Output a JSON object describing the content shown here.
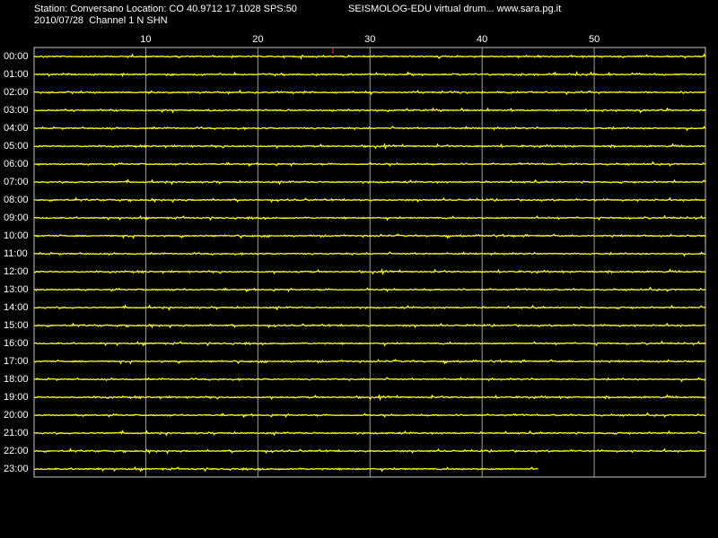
{
  "chart_data": {
    "type": "drum",
    "title": "Station: Conversano Location: CO 40.9712 17.1028 SPS:50",
    "subtitle": "SEISMOLOG-EDU virtual drum... www.sara.pg.it",
    "info": "2010/07/28  Channel 1 N SHN",
    "categories": [
      "00:00",
      "01:00",
      "02:00",
      "03:00",
      "04:00",
      "05:00",
      "06:00",
      "07:00",
      "08:00",
      "09:00",
      "10:00",
      "11:00",
      "12:00",
      "13:00",
      "14:00",
      "15:00",
      "16:00",
      "17:00",
      "18:00",
      "19:00",
      "20:00",
      "21:00",
      "22:00",
      "23:00"
    ],
    "values": [
      60,
      60,
      60,
      60,
      60,
      60,
      60,
      60,
      60,
      60,
      60,
      60,
      60,
      60,
      60,
      60,
      60,
      60,
      60,
      60,
      60,
      60,
      60,
      45
    ],
    "color": "#ffff00",
    "xlim": [
      0,
      60
    ],
    "xticks": [
      10,
      20,
      30,
      40,
      50
    ],
    "grid": true
  }
}
